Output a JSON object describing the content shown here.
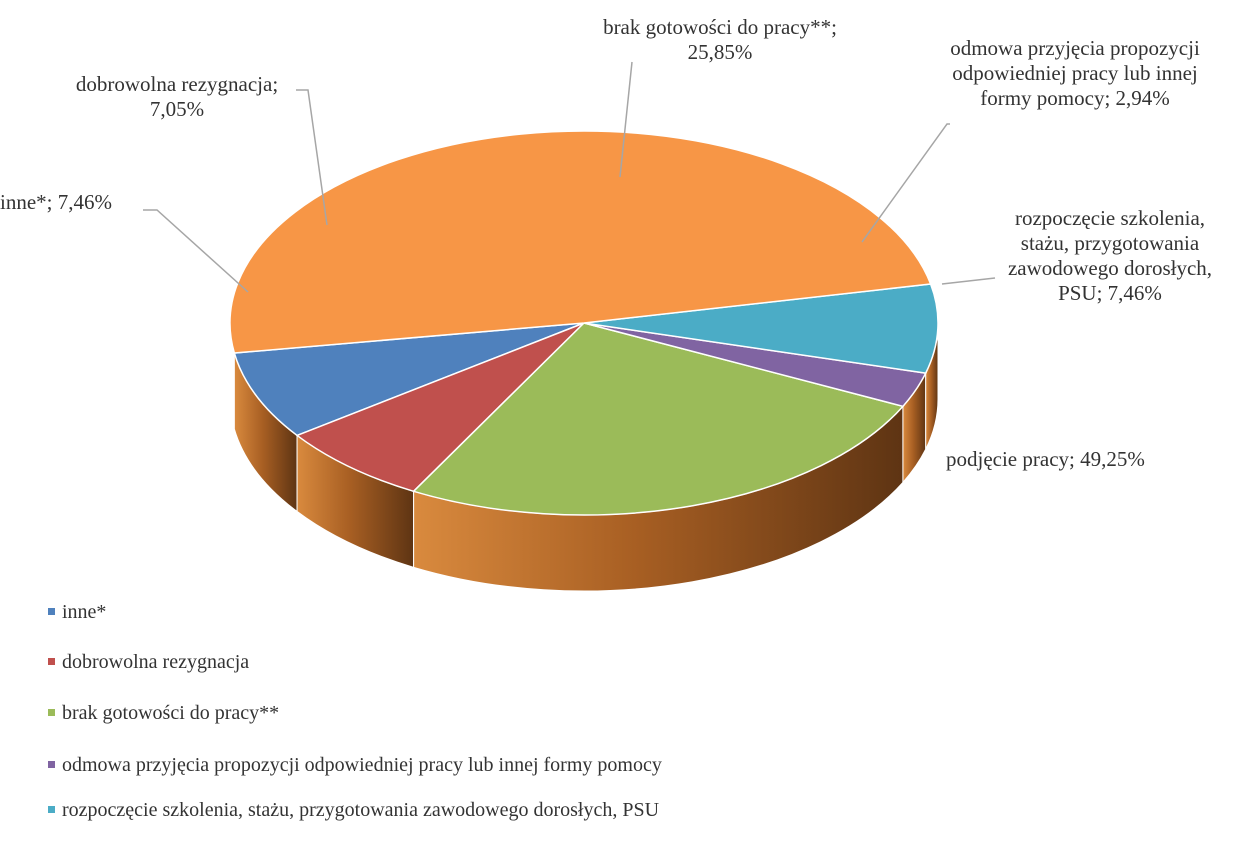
{
  "chart_data": {
    "type": "pie",
    "style": "3d",
    "title": "",
    "slices": [
      {
        "label": "inne*",
        "value": 7.46,
        "data_label": "inne*; 7,46%",
        "color": "#4F81BD"
      },
      {
        "label": "dobrowolna rezygnacja",
        "value": 7.05,
        "data_label": "dobrowolna rezygnacja; 7,05%",
        "color": "#C0504D"
      },
      {
        "label": "brak gotowości do pracy**",
        "value": 25.85,
        "data_label": "brak gotowości do pracy**; 25,85%",
        "color": "#9BBB59"
      },
      {
        "label": "odmowa przyjęcia propozycji odpowiedniej pracy lub innej formy pomocy",
        "value": 2.94,
        "data_label": "odmowa przyjęcia propozycji odpowiedniej pracy lub innej formy pomocy; 2,94%",
        "color": "#8064A2"
      },
      {
        "label": "rozpoczęcie szkolenia, stażu, przygotowania zawodowego dorosłych, PSU",
        "value": 7.46,
        "data_label": "rozpoczęcie szkolenia, stażu, przygotowania zawodowego dorosłych, PSU; 7,46%",
        "color": "#4BACC6"
      },
      {
        "label": "podjęcie pracy",
        "value": 49.25,
        "data_label": "podjęcie pracy; 49,25%",
        "color": "#F79646"
      }
    ],
    "legend_position": "bottom-left",
    "legend": [
      "inne*",
      "dobrowolna rezygnacja",
      "brak gotowości do pracy**",
      "odmowa przyjęcia propozycji odpowiedniej pracy lub innej formy pomocy",
      "rozpoczęcie szkolenia, stażu, przygotowania zawodowego dorosłych, PSU"
    ]
  }
}
